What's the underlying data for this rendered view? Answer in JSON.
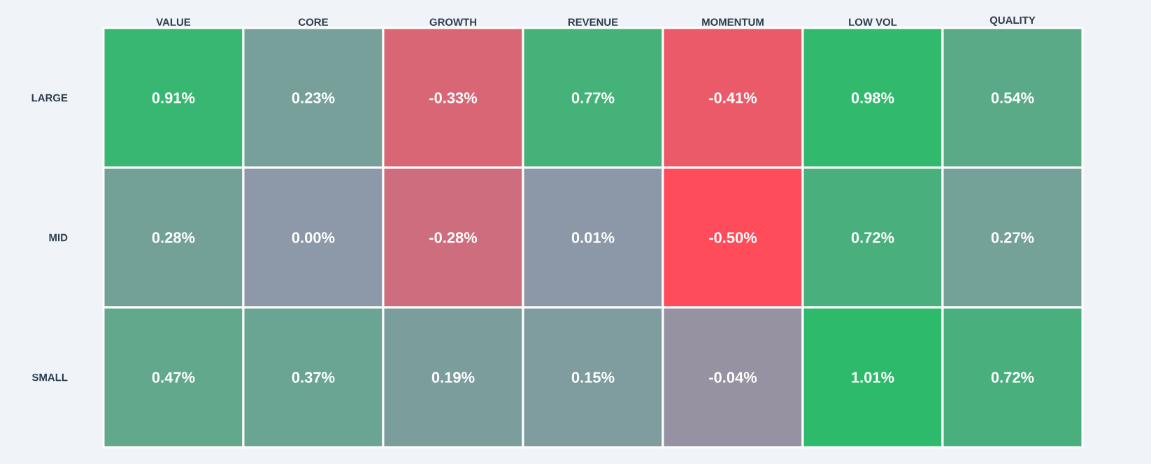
{
  "chart_data": {
    "type": "heatmap",
    "categories": [
      "VALUE",
      "CORE",
      "GROWTH",
      "REVENUE",
      "MOMENTUM",
      "LOW VOL",
      "QUALITY"
    ],
    "y_categories": [
      "LARGE",
      "MID",
      "SMALL"
    ],
    "cells": [
      [
        0.91,
        0.23,
        -0.33,
        0.77,
        -0.41,
        0.98,
        0.54
      ],
      [
        0.28,
        0.0,
        -0.28,
        0.01,
        -0.5,
        0.72,
        0.27
      ],
      [
        0.47,
        0.37,
        0.19,
        0.15,
        -0.04,
        1.01,
        0.72
      ]
    ],
    "cell_labels": [
      [
        "0.91%",
        "0.23%",
        "-0.33%",
        "0.77%",
        "-0.41%",
        "0.98%",
        "0.54%"
      ],
      [
        "0.28%",
        "0.00%",
        "-0.28%",
        "0.01%",
        "-0.50%",
        "0.72%",
        "0.27%"
      ],
      [
        "0.47%",
        "0.37%",
        "0.19%",
        "0.15%",
        "-0.04%",
        "1.01%",
        "0.72%"
      ]
    ]
  }
}
